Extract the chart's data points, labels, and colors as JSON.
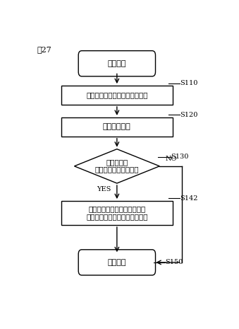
{
  "fig_label": "図27",
  "bg_color": "#ffffff",
  "box_color": "#ffffff",
  "box_edge_color": "#000000",
  "text_color": "#000000",
  "start_label": "スタート",
  "s110_label": "負荷（回転数や発電量）を検知",
  "s120_label": "総負荷量算出",
  "s130_label": "総負荷量が\nしきい値を超えたか？",
  "s142_label": "内輪の負荷域移動を指示する\nための信号を監視サーバへ出力",
  "return_label": "リターン",
  "step_labels": [
    "S110",
    "S120",
    "S130",
    "S142",
    "S150"
  ],
  "yes_label": "YES",
  "no_label": "NO",
  "font_size_node": 8,
  "font_size_step": 7,
  "font_size_fig": 8,
  "lw": 1.0
}
